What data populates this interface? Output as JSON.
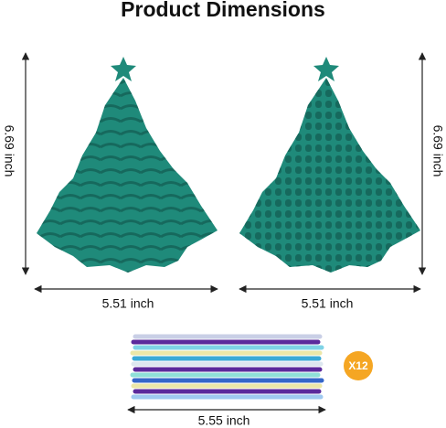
{
  "header": {
    "title": "Product Dimensions"
  },
  "products": [
    {
      "height": "6.69 inch",
      "width": "5.51 inch"
    },
    {
      "height": "6.69 inch",
      "width": "5.51 inch"
    }
  ],
  "sticks": {
    "width": "5.55 inch",
    "count": "X12"
  }
}
